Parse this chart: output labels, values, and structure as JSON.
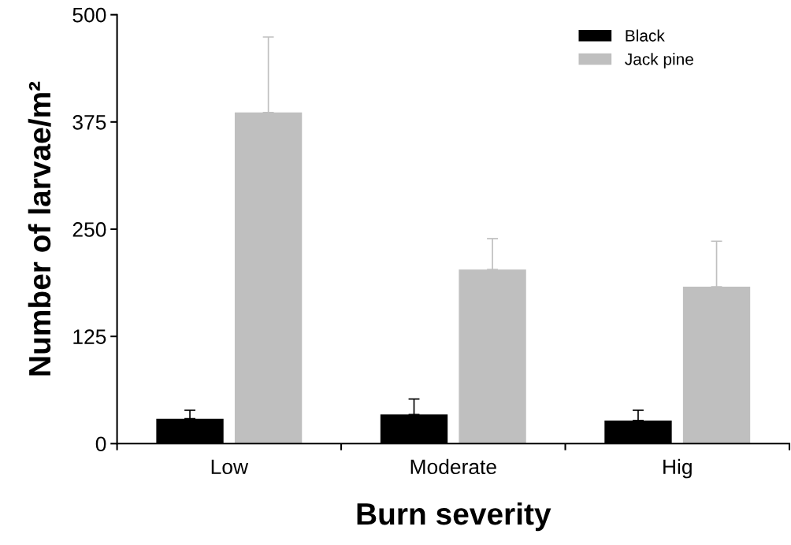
{
  "chart_data": {
    "type": "bar",
    "xlabel": "Burn severity",
    "ylabel": "Number of larvae/m²",
    "categories": [
      "Low",
      "Moderate",
      "Hig"
    ],
    "series": [
      {
        "name": "Black",
        "color": "#000000",
        "values": [
          29,
          34,
          27
        ],
        "errors": [
          [
            29,
            39
          ],
          [
            34,
            52
          ],
          [
            27,
            39
          ]
        ]
      },
      {
        "name": "Jack pine",
        "color": "#bfbfbf",
        "values": [
          386,
          203,
          183
        ],
        "errors": [
          [
            386,
            474
          ],
          [
            203,
            239
          ],
          [
            183,
            236
          ]
        ]
      }
    ],
    "ylim": [
      0,
      500
    ],
    "yticks": [
      0,
      125,
      250,
      375,
      500
    ],
    "grid": false,
    "legend": "top right"
  }
}
